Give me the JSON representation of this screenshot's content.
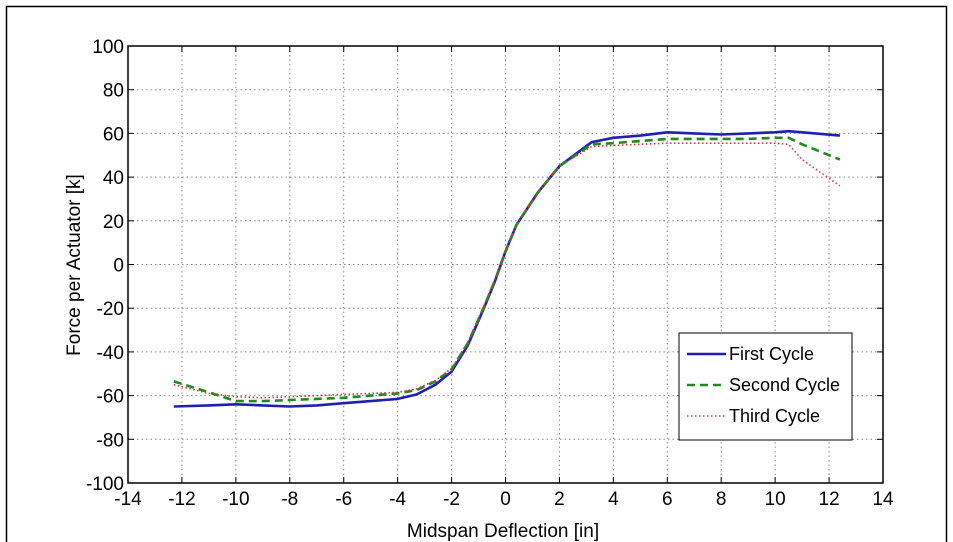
{
  "chart_data": {
    "type": "line",
    "title": "",
    "xlabel": "Midspan Deflection [in]",
    "ylabel": "Force per Actuator [k]",
    "xlim": [
      -14,
      14
    ],
    "ylim": [
      -100,
      100
    ],
    "xticks": [
      -14,
      -12,
      -10,
      -8,
      -6,
      -4,
      -2,
      0,
      2,
      4,
      6,
      8,
      10,
      12,
      14
    ],
    "yticks": [
      -100,
      -80,
      -60,
      -40,
      -20,
      0,
      20,
      40,
      60,
      80,
      100
    ],
    "grid": true,
    "legend_position": "bottom-right",
    "series": [
      {
        "name": "First Cycle",
        "color": "#1f1fb4",
        "line_style": "solid",
        "x": [
          -12.3,
          -11,
          -10,
          -9,
          -8,
          -7,
          -6,
          -5,
          -4,
          -3.3,
          -2.6,
          -2,
          -1.4,
          -0.8,
          -0.4,
          0,
          0.4,
          1.2,
          2,
          3.2,
          4,
          5,
          6,
          7,
          8,
          9,
          10,
          10.5,
          11,
          12.4
        ],
        "y": [
          -65,
          -64.5,
          -64,
          -64.5,
          -65,
          -64.5,
          -63.5,
          -62.5,
          -61.5,
          -59.5,
          -55,
          -49,
          -37,
          -20,
          -8,
          6,
          18,
          33,
          45,
          56,
          58,
          59,
          60.5,
          60,
          59.5,
          60,
          60.5,
          61,
          60.5,
          59
        ]
      },
      {
        "name": "Second Cycle",
        "color": "#1f8a1f",
        "line_style": "dashed",
        "x": [
          -12.3,
          -11,
          -10,
          -9,
          -8,
          -7,
          -6,
          -5,
          -4,
          -3.3,
          -2.6,
          -2,
          -1.4,
          -0.8,
          -0.4,
          0,
          0.4,
          1.2,
          2,
          3.2,
          4,
          5,
          6,
          7,
          8,
          9,
          10,
          10.5,
          11,
          12.4
        ],
        "y": [
          -53.5,
          -58.5,
          -62.5,
          -62.5,
          -62,
          -61.5,
          -61,
          -60,
          -59,
          -57.5,
          -53.5,
          -48,
          -36,
          -19.5,
          -7.5,
          6,
          18,
          33,
          45,
          55,
          55.5,
          56.5,
          57.5,
          57.5,
          57.5,
          57.5,
          58,
          58,
          55,
          48
        ]
      },
      {
        "name": "Third Cycle",
        "color": "#e03030",
        "line_style": "dotted",
        "x": [
          -12.3,
          -11,
          -10,
          -9,
          -8,
          -7,
          -6,
          -5,
          -4,
          -3.3,
          -2.6,
          -2,
          -1.4,
          -0.8,
          -0.4,
          0,
          0.4,
          1.2,
          2,
          3.2,
          4,
          5,
          6,
          7,
          8,
          9,
          10,
          10.5,
          11,
          12.4
        ],
        "y": [
          -55,
          -59,
          -60.5,
          -61,
          -60.5,
          -60,
          -59.5,
          -59,
          -58.5,
          -57,
          -53,
          -47.5,
          -35.5,
          -19,
          -7,
          6,
          18,
          33,
          45,
          54,
          54.5,
          55,
          55.5,
          55.5,
          55.5,
          55.5,
          55.5,
          55,
          48,
          36
        ]
      }
    ]
  }
}
